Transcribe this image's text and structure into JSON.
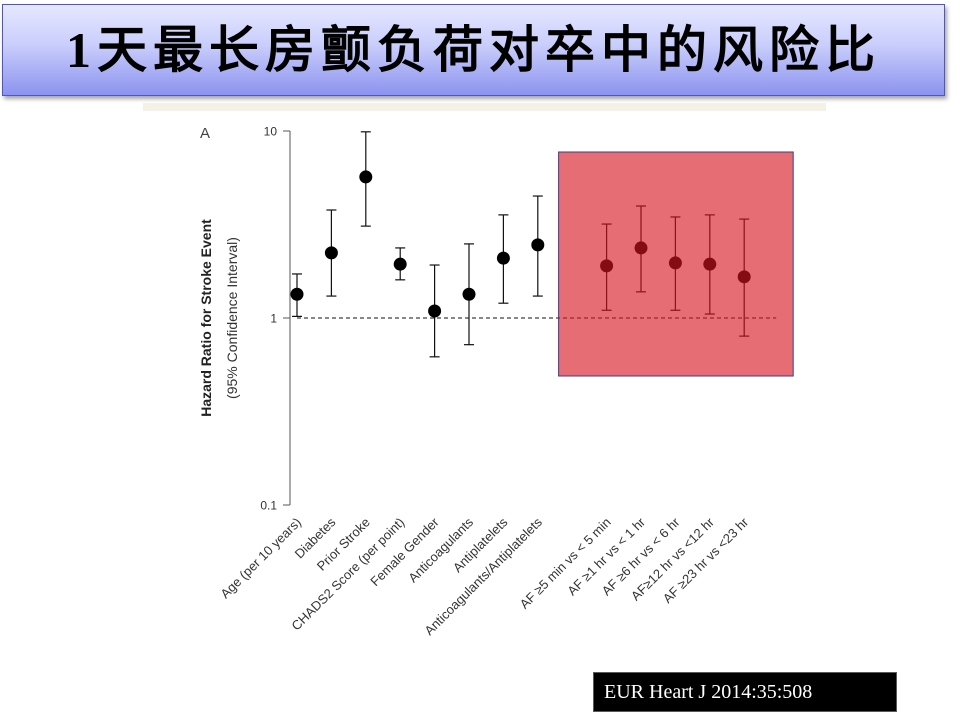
{
  "slide": {
    "title": "1天最长房颤负荷对卒中的风险比",
    "citation": "EUR Heart J 2014:35:508",
    "colors": {
      "title_band_top": "#e6e8ff",
      "title_band_mid": "#c9cdfb",
      "title_band_bottom": "#8c93ee",
      "title_border": "#4f55c4",
      "citation_bg": "#000000",
      "citation_text": "#ffffff"
    }
  },
  "chart_data": {
    "type": "scatter",
    "panel_label": "A",
    "ylabel": "Hazard Ratio for Stroke Event",
    "ylabel_sub": "(95% Confidence Interval)",
    "yscale": "log",
    "ylim": [
      0.1,
      10
    ],
    "yticks": [
      10,
      1,
      0.1
    ],
    "ytick_labels": [
      "10",
      "1",
      "0.1"
    ],
    "reference_line": 1,
    "categories": [
      "Age (per 10 years)",
      "Diabetes",
      "Prior Stroke",
      "CHADS2 Score (per point)",
      "Female Gender",
      "Anticoagulants",
      "Antiplatelets",
      "Anticoagulants/Antiplatelets",
      "AF ≥5 min vs < 5 min",
      "AF ≥1 hr vs < 1 hr",
      "AF ≥6 hr vs < 6 hr",
      "AF≥12 hr vs <12 hr",
      "AF ≥23 hr vs <23 hr"
    ],
    "series": [
      {
        "values": [
          1.34,
          2.23,
          5.68,
          1.94,
          1.09,
          1.34,
          2.09,
          2.46,
          1.9,
          2.37,
          1.97,
          1.94,
          1.66
        ],
        "ci_lower": [
          1.02,
          1.31,
          3.1,
          1.6,
          0.62,
          0.72,
          1.2,
          1.31,
          1.1,
          1.38,
          1.1,
          1.05,
          0.8
        ],
        "ci_upper": [
          1.72,
          3.78,
          9.9,
          2.37,
          1.92,
          2.49,
          3.56,
          4.49,
          3.18,
          3.97,
          3.47,
          3.56,
          3.38
        ]
      }
    ],
    "highlighted": [
      false,
      false,
      false,
      false,
      false,
      false,
      false,
      false,
      true,
      true,
      true,
      true,
      true
    ],
    "highlight_color": "#d7141e"
  }
}
